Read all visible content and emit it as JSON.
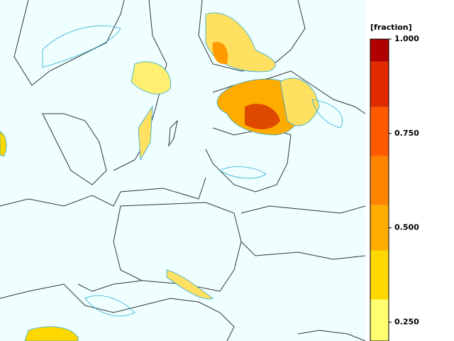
{
  "colorbar": {
    "label": "[fraction]",
    "lim": [
      0.2,
      1.0
    ],
    "levels": [
      0.2,
      0.31,
      0.44,
      0.56,
      0.69,
      0.82,
      0.94,
      1.0
    ],
    "colors": [
      "#ffff70",
      "#ffd800",
      "#ffac00",
      "#ff8400",
      "#ff5a00",
      "#e02a00",
      "#b00000"
    ],
    "ticks": [
      {
        "value": 1.0,
        "label": "1.000"
      },
      {
        "value": 0.75,
        "label": "0.750"
      },
      {
        "value": 0.5,
        "label": "0.500"
      },
      {
        "value": 0.25,
        "label": "0.250"
      }
    ]
  }
}
